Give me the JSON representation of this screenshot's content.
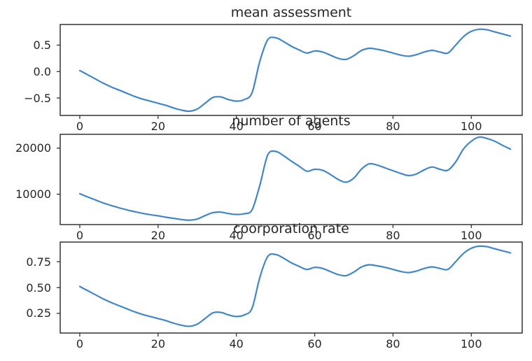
{
  "figure": {
    "background": "#ffffff",
    "axis_color": "#333333",
    "text_color": "#262626",
    "line_color": "#4286c7"
  },
  "chart_data": [
    {
      "type": "line",
      "title": "mean assessment",
      "xlabel": "",
      "ylabel": "",
      "grid": false,
      "legend": null,
      "xlim": [
        -5,
        113
      ],
      "ylim": [
        -0.83,
        0.89
      ],
      "xticks": [
        0,
        20,
        40,
        60,
        80,
        100
      ],
      "xtick_labels": [
        "0",
        "20",
        "40",
        "60",
        "80",
        "100"
      ],
      "yticks": [
        0.5,
        0.0,
        -0.5
      ],
      "ytick_labels": [
        "0.5",
        "0.0",
        "−0.5"
      ],
      "x": [
        0,
        2,
        4,
        6,
        8,
        10,
        12,
        14,
        16,
        18,
        20,
        22,
        24,
        26,
        28,
        30,
        32,
        34,
        36,
        38,
        40,
        42,
        44,
        46,
        48,
        50,
        52,
        54,
        56,
        58,
        60,
        62,
        64,
        66,
        68,
        70,
        72,
        74,
        76,
        78,
        80,
        82,
        84,
        86,
        88,
        90,
        92,
        94,
        96,
        98,
        100,
        102,
        104,
        106,
        108,
        110
      ],
      "y": [
        0.02,
        -0.06,
        -0.14,
        -0.22,
        -0.29,
        -0.35,
        -0.41,
        -0.47,
        -0.52,
        -0.56,
        -0.6,
        -0.64,
        -0.69,
        -0.73,
        -0.75,
        -0.71,
        -0.6,
        -0.49,
        -0.48,
        -0.53,
        -0.56,
        -0.53,
        -0.4,
        0.2,
        0.6,
        0.64,
        0.57,
        0.48,
        0.41,
        0.35,
        0.39,
        0.37,
        0.31,
        0.25,
        0.23,
        0.3,
        0.4,
        0.44,
        0.42,
        0.39,
        0.35,
        0.31,
        0.29,
        0.32,
        0.37,
        0.4,
        0.37,
        0.35,
        0.5,
        0.66,
        0.76,
        0.8,
        0.79,
        0.75,
        0.71,
        0.67
      ]
    },
    {
      "type": "line",
      "title": "number of agents",
      "xlabel": "",
      "ylabel": "",
      "grid": false,
      "legend": null,
      "xlim": [
        -5,
        113
      ],
      "ylim": [
        3400,
        23000
      ],
      "xticks": [
        0,
        20,
        40,
        60,
        80,
        100
      ],
      "xtick_labels": [
        "0",
        "20",
        "40",
        "60",
        "80",
        "100"
      ],
      "yticks": [
        20000,
        10000
      ],
      "ytick_labels": [
        "20000",
        "10000"
      ],
      "x": [
        0,
        2,
        4,
        6,
        8,
        10,
        12,
        14,
        16,
        18,
        20,
        22,
        24,
        26,
        28,
        30,
        32,
        34,
        36,
        38,
        40,
        42,
        44,
        46,
        48,
        50,
        52,
        54,
        56,
        58,
        60,
        62,
        64,
        66,
        68,
        70,
        72,
        74,
        76,
        78,
        80,
        82,
        84,
        86,
        88,
        90,
        92,
        94,
        96,
        98,
        100,
        102,
        104,
        106,
        108,
        110
      ],
      "y": [
        10100,
        9400,
        8750,
        8100,
        7550,
        7050,
        6600,
        6200,
        5850,
        5550,
        5300,
        5000,
        4750,
        4500,
        4350,
        4600,
        5350,
        6000,
        6100,
        5800,
        5600,
        5750,
        6600,
        12000,
        18500,
        19300,
        18400,
        17200,
        16100,
        15000,
        15400,
        15200,
        14300,
        13200,
        12600,
        13500,
        15500,
        16600,
        16300,
        15700,
        15100,
        14500,
        14050,
        14400,
        15300,
        15900,
        15400,
        15200,
        17000,
        19800,
        21500,
        22400,
        22100,
        21500,
        20600,
        19800
      ]
    },
    {
      "type": "line",
      "title": "coorporation rate",
      "xlabel": "",
      "ylabel": "",
      "grid": false,
      "legend": null,
      "xlim": [
        -5,
        113
      ],
      "ylim": [
        0.06,
        0.94
      ],
      "xticks": [
        0,
        20,
        40,
        60,
        80,
        100
      ],
      "xtick_labels": [
        "0",
        "20",
        "40",
        "60",
        "80",
        "100"
      ],
      "yticks": [
        0.75,
        0.5,
        0.25
      ],
      "ytick_labels": [
        "0.75",
        "0.50",
        "0.25"
      ],
      "x": [
        0,
        2,
        4,
        6,
        8,
        10,
        12,
        14,
        16,
        18,
        20,
        22,
        24,
        26,
        28,
        30,
        32,
        34,
        36,
        38,
        40,
        42,
        44,
        46,
        48,
        50,
        52,
        54,
        56,
        58,
        60,
        62,
        64,
        66,
        68,
        70,
        72,
        74,
        76,
        78,
        80,
        82,
        84,
        86,
        88,
        90,
        92,
        94,
        96,
        98,
        100,
        102,
        104,
        106,
        108,
        110
      ],
      "y": [
        0.51,
        0.47,
        0.43,
        0.39,
        0.355,
        0.325,
        0.295,
        0.265,
        0.24,
        0.22,
        0.2,
        0.18,
        0.155,
        0.135,
        0.125,
        0.145,
        0.2,
        0.255,
        0.26,
        0.235,
        0.22,
        0.235,
        0.3,
        0.6,
        0.8,
        0.82,
        0.785,
        0.74,
        0.705,
        0.675,
        0.695,
        0.685,
        0.655,
        0.625,
        0.615,
        0.65,
        0.7,
        0.72,
        0.71,
        0.695,
        0.675,
        0.655,
        0.645,
        0.66,
        0.685,
        0.7,
        0.685,
        0.675,
        0.75,
        0.83,
        0.88,
        0.9,
        0.895,
        0.875,
        0.855,
        0.835
      ]
    }
  ]
}
